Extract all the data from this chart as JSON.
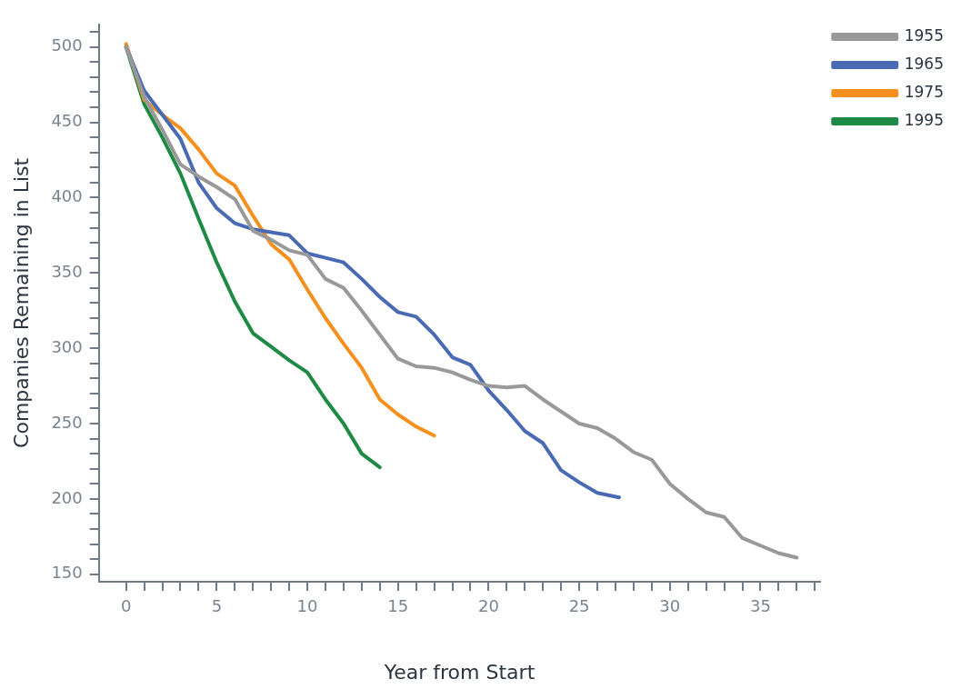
{
  "chart_data": {
    "type": "line",
    "xlabel": "Year from Start",
    "ylabel": "Companies Remaining in List",
    "xlim": [
      -1.5,
      38.3
    ],
    "ylim": [
      145,
      515
    ],
    "xticks": [
      0,
      {
        "value": 1,
        "label": null
      },
      {
        "value": 2,
        "label": null
      },
      {
        "value": 3,
        "label": null
      },
      {
        "value": 4,
        "label": null
      },
      5,
      {
        "value": 6,
        "label": null
      },
      {
        "value": 7,
        "label": null
      },
      {
        "value": 8,
        "label": null
      },
      {
        "value": 9,
        "label": null
      },
      10,
      {
        "value": 11,
        "label": null
      },
      {
        "value": 12,
        "label": null
      },
      {
        "value": 13,
        "label": null
      },
      {
        "value": 14,
        "label": null
      },
      15,
      {
        "value": 16,
        "label": null
      },
      {
        "value": 17,
        "label": null
      },
      {
        "value": 18,
        "label": null
      },
      {
        "value": 19,
        "label": null
      },
      20,
      {
        "value": 21,
        "label": null
      },
      {
        "value": 22,
        "label": null
      },
      {
        "value": 23,
        "label": null
      },
      {
        "value": 24,
        "label": null
      },
      25,
      {
        "value": 26,
        "label": null
      },
      {
        "value": 27,
        "label": null
      },
      {
        "value": 28,
        "label": null
      },
      {
        "value": 29,
        "label": null
      },
      30,
      {
        "value": 31,
        "label": null
      },
      {
        "value": 32,
        "label": null
      },
      {
        "value": 33,
        "label": null
      },
      {
        "value": 34,
        "label": null
      },
      35,
      {
        "value": 36,
        "label": null
      },
      {
        "value": 37,
        "label": null
      },
      {
        "value": 38,
        "label": null
      }
    ],
    "yticks": [
      150,
      {
        "value": 160,
        "label": null
      },
      {
        "value": 170,
        "label": null
      },
      {
        "value": 180,
        "label": null
      },
      {
        "value": 190,
        "label": null
      },
      200,
      {
        "value": 210,
        "label": null
      },
      {
        "value": 220,
        "label": null
      },
      {
        "value": 230,
        "label": null
      },
      {
        "value": 240,
        "label": null
      },
      250,
      {
        "value": 260,
        "label": null
      },
      {
        "value": 270,
        "label": null
      },
      {
        "value": 280,
        "label": null
      },
      {
        "value": 290,
        "label": null
      },
      300,
      {
        "value": 310,
        "label": null
      },
      {
        "value": 320,
        "label": null
      },
      {
        "value": 330,
        "label": null
      },
      {
        "value": 340,
        "label": null
      },
      350,
      {
        "value": 360,
        "label": null
      },
      {
        "value": 370,
        "label": null
      },
      {
        "value": 380,
        "label": null
      },
      {
        "value": 390,
        "label": null
      },
      400,
      {
        "value": 410,
        "label": null
      },
      {
        "value": 420,
        "label": null
      },
      {
        "value": 430,
        "label": null
      },
      {
        "value": 440,
        "label": null
      },
      450,
      {
        "value": 460,
        "label": null
      },
      {
        "value": 470,
        "label": null
      },
      {
        "value": 480,
        "label": null
      },
      {
        "value": 490,
        "label": null
      },
      500,
      {
        "value": 510,
        "label": null
      }
    ],
    "grid": false,
    "legend": "top right",
    "marker": "none",
    "line_style": "solid",
    "series": [
      {
        "name": "1955",
        "color": "#999999",
        "x": [
          0,
          1,
          2,
          3,
          4,
          5,
          6,
          7,
          8,
          9,
          10,
          11,
          12,
          13,
          14,
          15,
          16,
          17,
          18,
          19,
          20,
          21,
          22,
          23,
          24,
          25,
          26,
          27,
          28,
          29,
          30,
          31,
          32,
          33,
          34,
          35,
          36,
          37
        ],
        "values": [
          500,
          467,
          445,
          422,
          414,
          407,
          399,
          378,
          372,
          365,
          362,
          346,
          340,
          325,
          309,
          293,
          288,
          287,
          284,
          279,
          275,
          274,
          275,
          266,
          258,
          250,
          247,
          240,
          231,
          226,
          210,
          200,
          191,
          188,
          174,
          169,
          164,
          161
        ]
      },
      {
        "name": "1965",
        "color": "#4a6ab4",
        "x": [
          0,
          1,
          2,
          3,
          4,
          5,
          6,
          7,
          8,
          9,
          10,
          11,
          12,
          13,
          14,
          15,
          16,
          17,
          18,
          19,
          20,
          21,
          22,
          23,
          24,
          25,
          26,
          27.2
        ],
        "values": [
          500,
          471,
          455,
          439,
          410,
          393,
          383,
          379,
          377,
          375,
          363,
          360,
          357,
          346,
          334,
          324,
          321,
          309,
          294,
          289,
          272,
          259,
          245,
          237,
          219,
          211,
          204,
          201
        ]
      },
      {
        "name": "1975",
        "color": "#f5901e",
        "x": [
          0,
          1,
          2,
          3,
          4,
          5,
          6,
          7,
          8,
          9,
          10,
          11,
          12,
          13,
          14,
          15,
          16,
          17
        ],
        "values": [
          502,
          465,
          455,
          446,
          432,
          416,
          408,
          388,
          369,
          359,
          339,
          320,
          303,
          287,
          266,
          256,
          248,
          242
        ]
      },
      {
        "name": "1995",
        "color": "#1f8a45",
        "x": [
          0,
          1,
          2,
          3,
          4,
          5,
          6,
          7,
          8,
          9,
          10,
          11,
          12,
          13,
          14
        ],
        "values": [
          500,
          462,
          440,
          416,
          386,
          357,
          331,
          310,
          301,
          292,
          284,
          266,
          250,
          230,
          221
        ]
      }
    ]
  }
}
